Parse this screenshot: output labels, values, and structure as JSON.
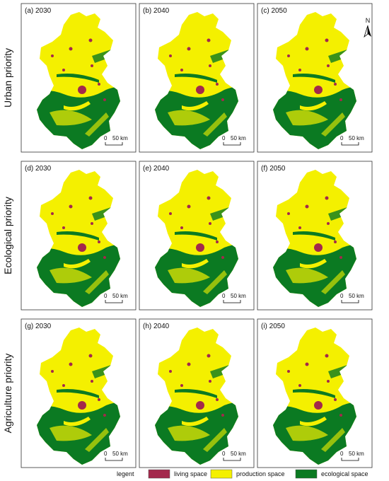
{
  "rows": [
    {
      "label": "Urban priority",
      "panels": [
        "(a) 2030",
        "(b) 2040",
        "(c) 2050"
      ]
    },
    {
      "label": "Ecological priority",
      "panels": [
        "(d) 2030",
        "(e) 2040",
        "(f) 2050"
      ]
    },
    {
      "label": "Agriculture priority",
      "panels": [
        "(g) 2030",
        "(h) 2040",
        "(i) 2050"
      ]
    }
  ],
  "scale_bar": {
    "start": "0",
    "end": "50 km"
  },
  "north_arrow": "N",
  "legend": {
    "title": "legent",
    "items": [
      {
        "label": "living space",
        "color": "#a3284c"
      },
      {
        "label": "production  space",
        "color": "#f4f000"
      },
      {
        "label": "ecological space",
        "color": "#0b7a22"
      }
    ]
  }
}
